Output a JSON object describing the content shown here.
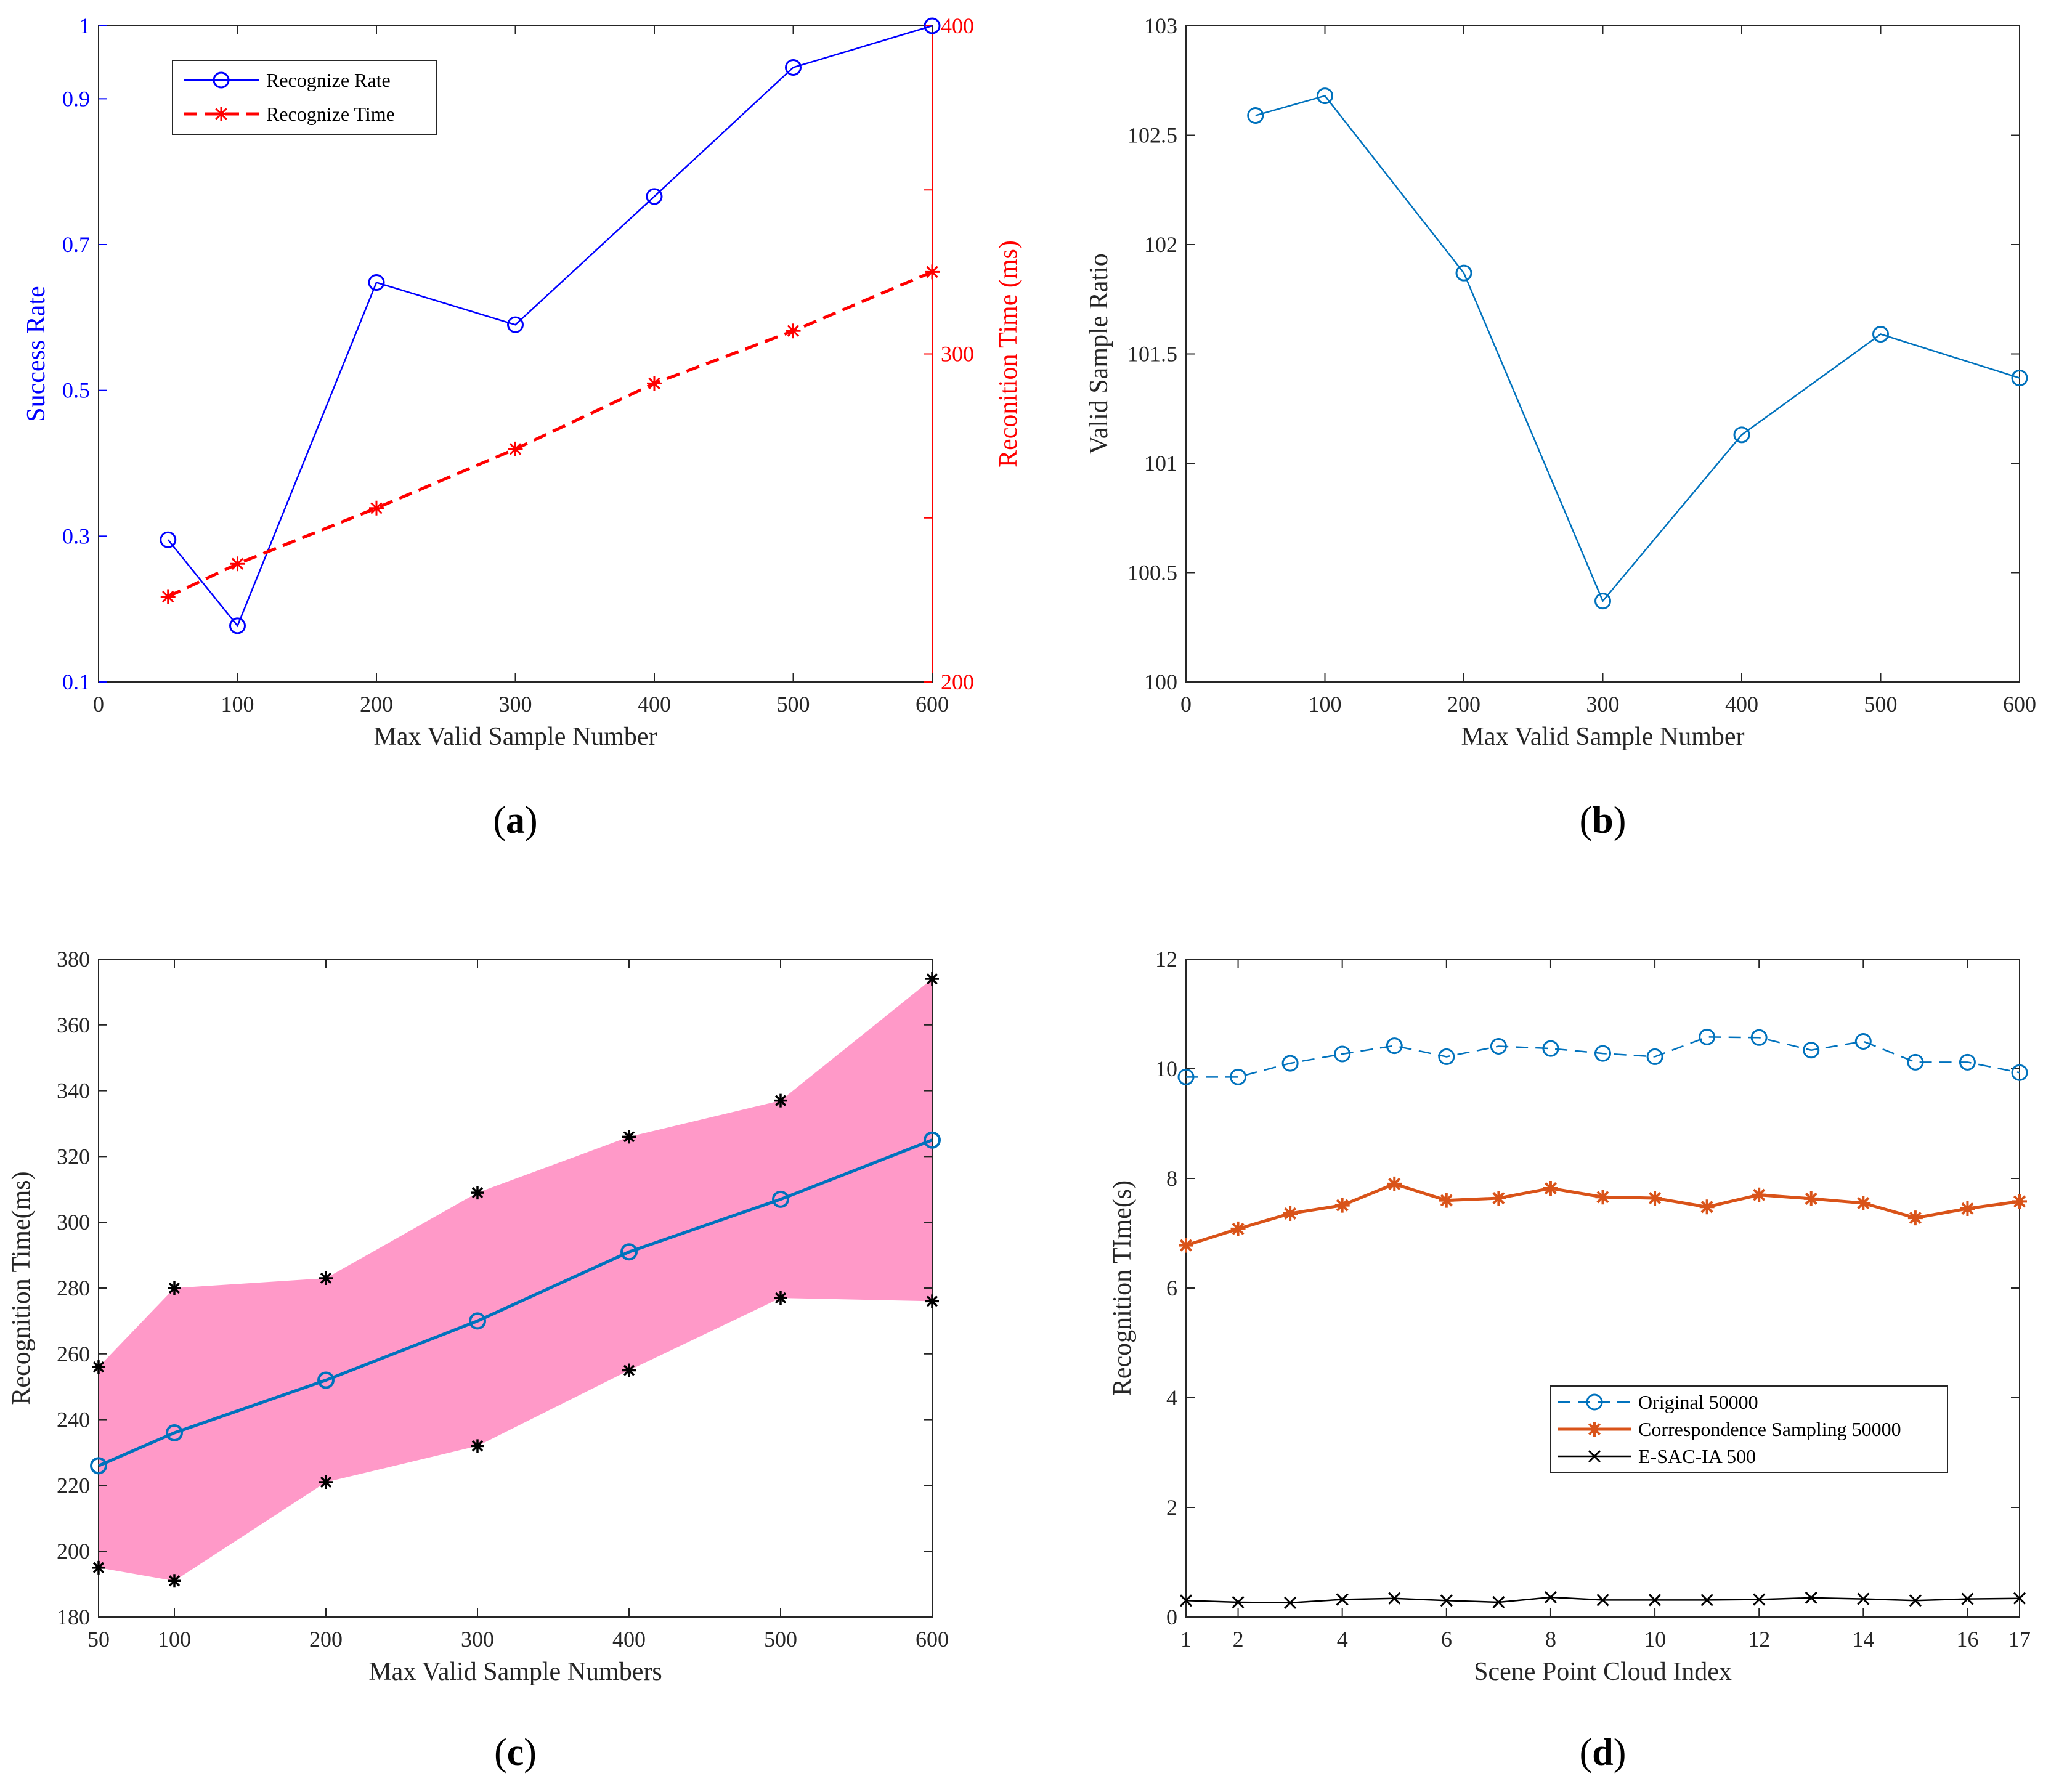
{
  "chart_data": [
    {
      "id": "a",
      "caption": "a",
      "type": "line",
      "xlabel": "Max Valid Sample Number",
      "xlim": [
        0,
        600
      ],
      "xticks": [
        0,
        100,
        200,
        300,
        400,
        500,
        600
      ],
      "xtick_labels": [
        "0",
        "100",
        "200",
        "300",
        "400",
        "500",
        "600"
      ],
      "ylabel_left": "Success Rate",
      "ylim_left": [
        0.1,
        1.0
      ],
      "yticks_left": [
        0.1,
        0.3,
        0.5,
        0.7,
        0.9,
        1.0
      ],
      "ytick_labels_left": [
        "0.1",
        "0.3",
        "0.5",
        "0.7",
        "0.9",
        "1"
      ],
      "ylabel_right": "Reconition Time (ms)",
      "ylim_right": [
        200,
        400
      ],
      "yticks_right": [
        200,
        300,
        400
      ],
      "ytick_labels_right": [
        "200",
        "300",
        "400"
      ],
      "colors": {
        "left": "#0000ff",
        "right": "#ff0000"
      },
      "legend": {
        "position": "top-left",
        "entries": [
          "Recognize Rate",
          "Recognize Time"
        ]
      },
      "series": [
        {
          "name": "Recognize Rate",
          "axis": "left",
          "marker": "circle",
          "style": "solid",
          "color": "#0000ff",
          "x": [
            50,
            100,
            200,
            300,
            400,
            500,
            600
          ],
          "y": [
            0.295,
            0.177,
            0.648,
            0.59,
            0.766,
            0.943,
            1.0
          ]
        },
        {
          "name": "Recognize Time",
          "axis": "right",
          "marker": "star",
          "style": "dashed",
          "color": "#ff0000",
          "x": [
            50,
            100,
            200,
            300,
            400,
            500,
            600
          ],
          "y": [
            226,
            236,
            253,
            271,
            291,
            307,
            325
          ]
        }
      ]
    },
    {
      "id": "b",
      "caption": "b",
      "type": "line",
      "xlabel": "Max Valid Sample Number",
      "xlim": [
        0,
        600
      ],
      "xticks": [
        0,
        100,
        200,
        300,
        400,
        500,
        600
      ],
      "xtick_labels": [
        "0",
        "100",
        "200",
        "300",
        "400",
        "500",
        "600"
      ],
      "ylabel": "Valid Sample Ratio",
      "ylim": [
        100,
        103
      ],
      "yticks": [
        100,
        100.5,
        101,
        101.5,
        102,
        102.5,
        103
      ],
      "ytick_labels": [
        "100",
        "100.5",
        "101",
        "101.5",
        "102",
        "102.5",
        "103"
      ],
      "series": [
        {
          "name": "Valid Sample Ratio",
          "marker": "circle",
          "style": "solid",
          "color": "#0072bd",
          "x": [
            50,
            100,
            200,
            300,
            400,
            500,
            600
          ],
          "y": [
            102.59,
            102.68,
            101.87,
            100.37,
            101.13,
            101.59,
            101.39
          ]
        }
      ]
    },
    {
      "id": "c",
      "caption": "c",
      "type": "area",
      "xlabel": "Max Valid Sample Numbers",
      "xlim": [
        50,
        600
      ],
      "xticks": [
        50,
        100,
        200,
        300,
        400,
        500,
        600
      ],
      "xtick_labels": [
        "50",
        "100",
        "200",
        "300",
        "400",
        "500",
        "600"
      ],
      "ylabel": "Recognition Time(ms)",
      "ylim": [
        180,
        380
      ],
      "yticks": [
        180,
        200,
        220,
        240,
        260,
        280,
        300,
        320,
        340,
        360,
        380
      ],
      "ytick_labels": [
        "180",
        "200",
        "220",
        "240",
        "260",
        "280",
        "300",
        "320",
        "340",
        "360",
        "380"
      ],
      "band_color": "#ff99c8",
      "x": [
        50,
        100,
        200,
        300,
        400,
        500,
        600
      ],
      "mean": [
        226,
        236,
        252,
        270,
        291,
        307,
        325
      ],
      "upper": [
        256,
        280,
        283,
        309,
        326,
        337,
        374
      ],
      "lower": [
        195,
        191,
        221,
        232,
        255,
        277,
        276
      ],
      "mean_color": "#0072bd",
      "marker_color": "#000000"
    },
    {
      "id": "d",
      "caption": "d",
      "type": "line",
      "xlabel": "Scene Point Cloud Index",
      "xlim": [
        1,
        17
      ],
      "xticks": [
        1,
        2,
        4,
        6,
        8,
        10,
        12,
        14,
        16,
        17
      ],
      "xtick_labels": [
        "1",
        "2",
        "4",
        "6",
        "8",
        "10",
        "12",
        "14",
        "16",
        "17"
      ],
      "ylabel": "Recognition TIme(s)",
      "ylim": [
        0,
        12
      ],
      "yticks": [
        0,
        2,
        4,
        6,
        8,
        10,
        12
      ],
      "ytick_labels": [
        "0",
        "2",
        "4",
        "6",
        "8",
        "10",
        "12"
      ],
      "legend": {
        "position": "lower-right",
        "entries": [
          "Original 50000",
          "Correspondence Sampling 50000",
          "E-SAC-IA 500"
        ]
      },
      "x": [
        1,
        2,
        3,
        4,
        5,
        6,
        7,
        8,
        9,
        10,
        11,
        12,
        13,
        14,
        15,
        16,
        17
      ],
      "series": [
        {
          "name": "Original 50000",
          "marker": "circle",
          "style": "dashed",
          "color": "#0072bd",
          "y": [
            9.85,
            9.85,
            10.1,
            10.27,
            10.42,
            10.22,
            10.41,
            10.37,
            10.28,
            10.22,
            10.58,
            10.57,
            10.34,
            10.5,
            10.12,
            10.12,
            9.93
          ]
        },
        {
          "name": "Correspondence Sampling 50000",
          "marker": "star",
          "style": "solid",
          "color": "#d95319",
          "y": [
            6.78,
            7.08,
            7.36,
            7.51,
            7.9,
            7.6,
            7.64,
            7.82,
            7.66,
            7.64,
            7.48,
            7.7,
            7.63,
            7.55,
            7.28,
            7.45,
            7.58
          ]
        },
        {
          "name": "E-SAC-IA 500",
          "marker": "x",
          "style": "solid",
          "color": "#000000",
          "y": [
            0.3,
            0.27,
            0.26,
            0.32,
            0.34,
            0.3,
            0.27,
            0.36,
            0.31,
            0.31,
            0.31,
            0.32,
            0.35,
            0.33,
            0.3,
            0.33,
            0.34
          ]
        }
      ]
    }
  ]
}
